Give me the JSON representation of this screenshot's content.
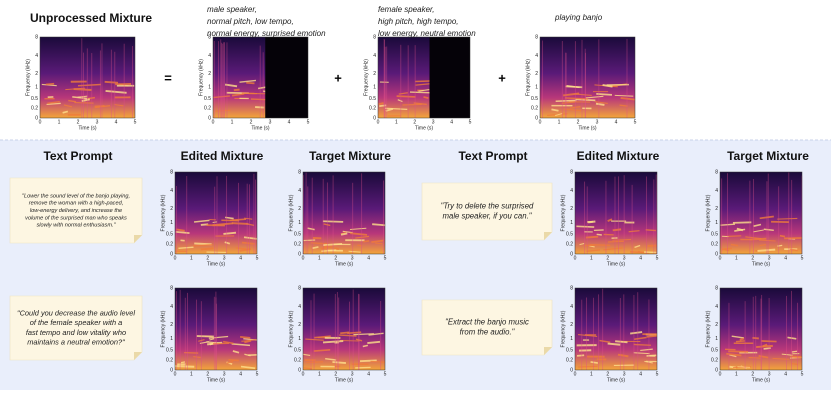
{
  "header": {
    "title": "Unprocessed Mixture",
    "operators": [
      "=",
      "+",
      "+"
    ]
  },
  "sources": [
    {
      "lines": [
        "male speaker,",
        "normal pitch, low tempo,",
        "normal energy, surprised emotion"
      ]
    },
    {
      "lines": [
        "female speaker,",
        "high pitch, high tempo,",
        "low energy, neutral emotion"
      ]
    },
    {
      "lines": [
        "playing banjo"
      ]
    }
  ],
  "spectrogram_axes": {
    "y_label": "Frequency (kHz)",
    "x_label": "Time (s)",
    "y_ticks": [
      "8",
      "4",
      "2",
      "1",
      "0.5",
      "0.2",
      "0"
    ],
    "x_ticks": [
      "0",
      "1",
      "2",
      "3",
      "4",
      "5"
    ]
  },
  "columns": [
    "Text Prompt",
    "Edited Mixture",
    "Target Mixture",
    "Text Prompt",
    "Edited Mixture",
    "Target Mixture"
  ],
  "prompts": [
    {
      "lines": [
        "\"Lower the sound level of the banjo playing,",
        "remove the woman with a high-paced,",
        "low-energy delivery, and increase the",
        "volume of the surprised man who speaks",
        "slowly with normal enthusiasm.\""
      ]
    },
    {
      "lines": [
        "\"Could you decrease the audio level",
        "of the female speaker with a",
        "fast tempo and low vitality who",
        "maintains a neutral emotion?\""
      ]
    },
    {
      "lines": [
        "\"Try to delete the surprised",
        "male speaker, if you can.\""
      ]
    },
    {
      "lines": [
        "\"Extract the banjo music",
        "from the audio.\""
      ]
    }
  ]
}
